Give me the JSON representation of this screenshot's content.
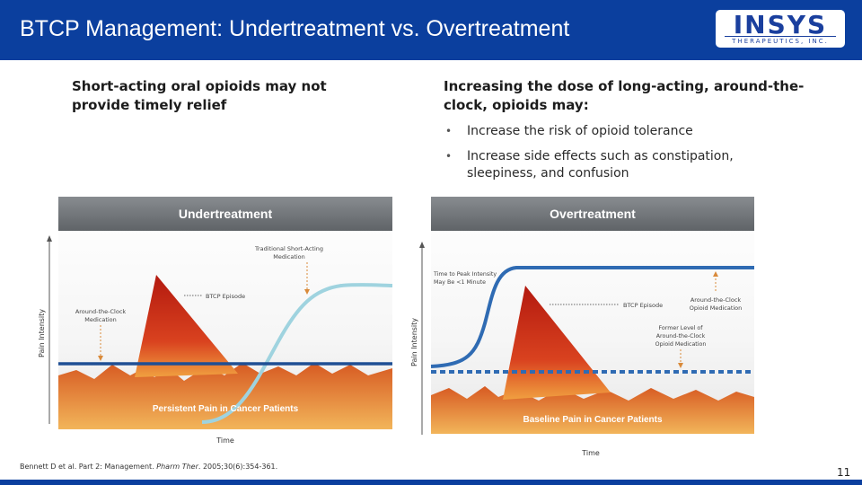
{
  "slide": {
    "title": "BTCP Management: Undertreatment vs. Overtreatment",
    "page_number": "11"
  },
  "logo": {
    "name": "INSYS",
    "tagline": "THERAPEUTICS, INC."
  },
  "left": {
    "heading": "Short-acting oral opioids may not provide timely relief"
  },
  "right": {
    "heading": "Increasing the dose of long-acting, around-the-clock, opioids may:",
    "bullets": [
      "Increase the risk of opioid tolerance",
      "Increase side effects such as constipation, sleepiness, and confusion"
    ]
  },
  "diagrams": {
    "undertreatment": {
      "banner": "Undertreatment",
      "y_axis": "Pain Intensity",
      "x_axis": "Time",
      "labels": {
        "short_acting": [
          "Traditional Short-Acting",
          "Medication"
        ],
        "btcp_episode": "BTCP Episode",
        "around_clock": [
          "Around-the-Clock",
          "Medication"
        ],
        "persistent": "Persistent Pain in Cancer Patients"
      }
    },
    "overtreatment": {
      "banner": "Overtreatment",
      "y_axis": "Pain Intensity",
      "x_axis": "Time",
      "labels": {
        "time_to_peak": [
          "Time to Peak Intensity",
          "May Be <1 Minute"
        ],
        "btcp_episode": "BTCP Episode",
        "around_clock": [
          "Around-the-Clock",
          "Opioid Medication"
        ],
        "former_level": [
          "Former Level of",
          "Around-the-Clock",
          "Opioid Medication"
        ],
        "baseline": "Baseline Pain in Cancer Patients"
      }
    }
  },
  "footnote": {
    "prefix": "Bennett D et al. Part 2: Management. ",
    "journal": "Pharm Ther",
    "suffix": ". 2005;30(6):354-361."
  },
  "colors": {
    "header": "#0b3f9e",
    "banner": "#6a6e72",
    "pain_red": "#c4261b",
    "pain_orange": "#e68a3c",
    "short_acting_line": "#9fd3df",
    "around_clock_line": "#1f4f94",
    "overtreatment_curve": "#2f6bb3"
  }
}
